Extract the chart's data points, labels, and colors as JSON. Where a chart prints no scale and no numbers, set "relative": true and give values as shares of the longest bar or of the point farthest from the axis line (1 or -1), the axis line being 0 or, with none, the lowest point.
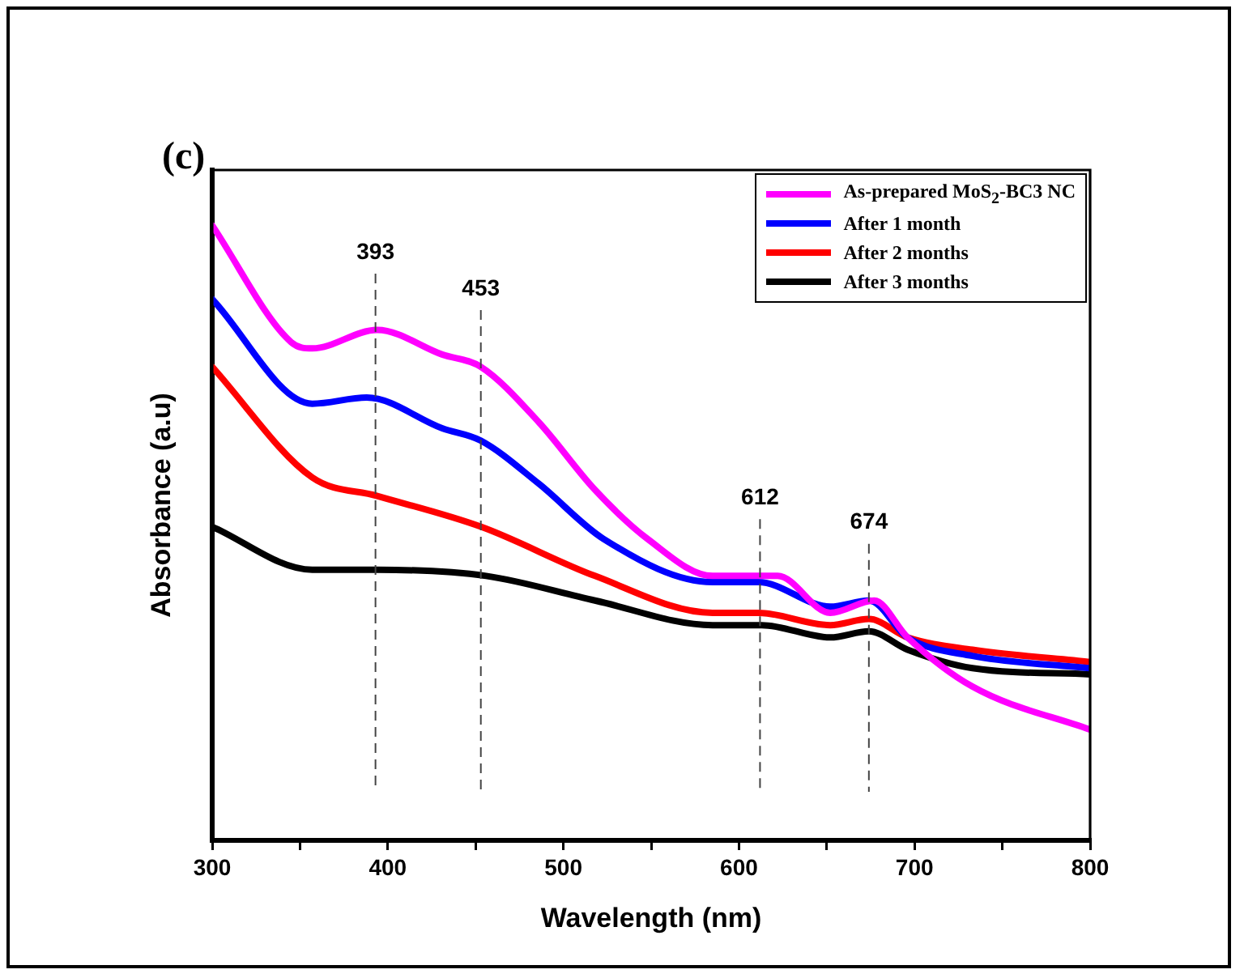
{
  "chart_data": {
    "type": "line",
    "title": "(c)",
    "xlabel": "Wavelength (nm)",
    "ylabel": "Absorbance (a.u)",
    "relative": true,
    "xlim": [
      300,
      800
    ],
    "xticks": [
      300,
      {
        "value": 350,
        "label": null
      },
      400,
      {
        "value": 450,
        "label": null
      },
      500,
      {
        "value": 550,
        "label": null
      },
      600,
      {
        "value": 650,
        "label": null
      },
      700,
      {
        "value": 750,
        "label": null
      },
      800
    ],
    "legend": "top right",
    "grid": false,
    "marker": "none",
    "line_style": "solid",
    "ref_lines": [
      {
        "axis": "x",
        "value": 393,
        "label": "393",
        "line_style": "dashed"
      },
      {
        "axis": "x",
        "value": 453,
        "label": "453",
        "line_style": "dashed"
      },
      {
        "axis": "x",
        "value": 612,
        "label": "612",
        "line_style": "dashed"
      },
      {
        "axis": "x",
        "value": 674,
        "label": "674",
        "line_style": "dashed"
      }
    ],
    "series": [
      {
        "name": "As-prepared MoS$_{2}$-BC3 NC",
        "color": "#ff00ff",
        "x": [
          300,
          345,
          357,
          394,
          431,
          453,
          486,
          518,
          548,
          585,
          613,
          622,
          652,
          677,
          696,
          733,
          800
        ],
        "values": [
          1.0,
          0.81,
          0.8,
          0.83,
          0.79,
          0.77,
          0.68,
          0.57,
          0.49,
          0.43,
          0.43,
          0.43,
          0.37,
          0.39,
          0.33,
          0.25,
          0.18
        ]
      },
      {
        "name": "After 1 month",
        "color": "#0000ff",
        "x": [
          300,
          357,
          388,
          431,
          453,
          486,
          523,
          585,
          611,
          652,
          674,
          696,
          733,
          800
        ],
        "values": [
          0.88,
          0.71,
          0.72,
          0.67,
          0.65,
          0.58,
          0.49,
          0.42,
          0.42,
          0.38,
          0.39,
          0.33,
          0.3,
          0.28
        ]
      },
      {
        "name": "After 2 months",
        "color": "#ff0000",
        "x": [
          300,
          357,
          394,
          453,
          518,
          585,
          611,
          652,
          674,
          696,
          733,
          800
        ],
        "values": [
          0.77,
          0.59,
          0.56,
          0.51,
          0.43,
          0.37,
          0.37,
          0.35,
          0.36,
          0.33,
          0.31,
          0.29
        ]
      },
      {
        "name": "After 3 months",
        "color": "#000000",
        "x": [
          300,
          357,
          394,
          456,
          518,
          585,
          613,
          652,
          674,
          696,
          733,
          800
        ],
        "values": [
          0.51,
          0.44,
          0.44,
          0.43,
          0.39,
          0.35,
          0.35,
          0.33,
          0.34,
          0.31,
          0.28,
          0.27
        ]
      }
    ]
  }
}
